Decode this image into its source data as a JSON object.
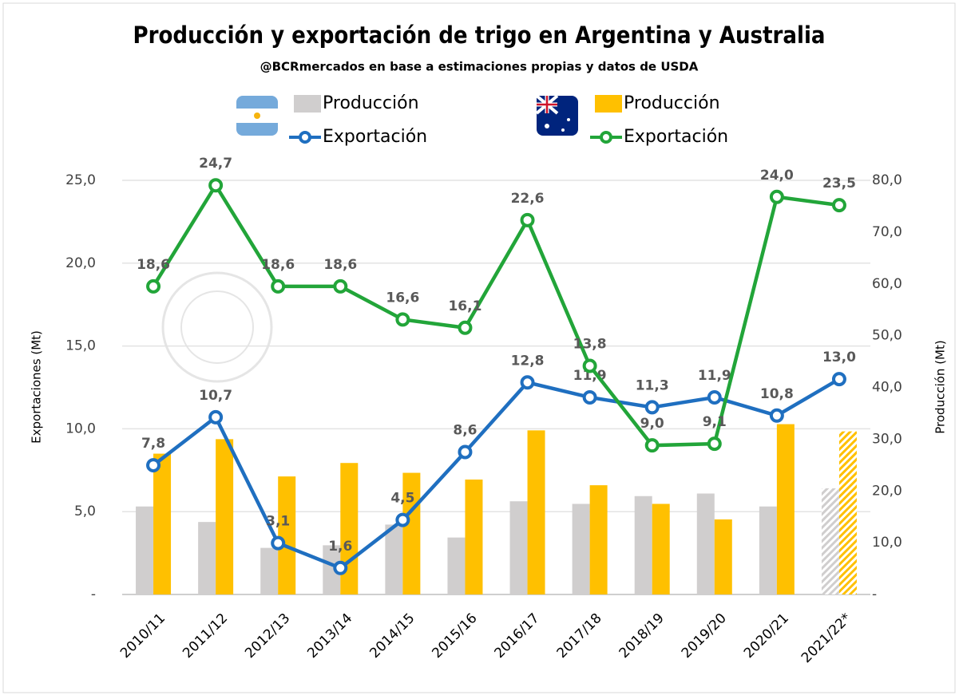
{
  "chart_data": {
    "type": "bar_line",
    "title": "Producción y exportación de trigo en Argentina y Australia",
    "subtitle": "@BCRmercados en base a estimaciones propias y datos de USDA",
    "y_label": "Exportaciones (Mt)",
    "y2_label": "Producción (Mt)",
    "categories": [
      "2010/11",
      "2011/12",
      "2012/13",
      "2013/14",
      "2014/15",
      "2015/16",
      "2016/17",
      "2017/18",
      "2018/19",
      "2019/20",
      "2020/21",
      "2021/22*"
    ],
    "ylim": [
      0,
      25
    ],
    "yticks": [
      {
        "value": 0,
        "label": "-"
      },
      {
        "value": 5,
        "label": "5,0"
      },
      {
        "value": 10,
        "label": "10,0"
      },
      {
        "value": 15,
        "label": "15,0"
      },
      {
        "value": 20,
        "label": "20,0"
      },
      {
        "value": 25,
        "label": "25,0"
      }
    ],
    "y2lim": [
      0,
      80
    ],
    "y2ticks": [
      {
        "value": 0,
        "label": "-"
      },
      {
        "value": 10,
        "label": "10,0"
      },
      {
        "value": 20,
        "label": "20,0"
      },
      {
        "value": 30,
        "label": "30,0"
      },
      {
        "value": 40,
        "label": "40,0"
      },
      {
        "value": 50,
        "label": "50,0"
      },
      {
        "value": 60,
        "label": "60,0"
      },
      {
        "value": 70,
        "label": "70,0"
      },
      {
        "value": 80,
        "label": "80,0"
      }
    ],
    "grid": true,
    "hatch_last": true,
    "series": [
      {
        "name": "Producción",
        "type": "bar",
        "axis": "y2",
        "color": "#d0cece",
        "values": [
          17.0,
          14.0,
          9.0,
          9.5,
          13.5,
          11.0,
          18.0,
          17.5,
          19.0,
          19.5,
          17.0,
          20.5
        ]
      },
      {
        "name": "Exportación",
        "type": "line",
        "color": "#1f6fc0",
        "values": [
          7.8,
          10.7,
          3.1,
          1.6,
          4.5,
          8.6,
          12.8,
          11.9,
          11.3,
          11.9,
          10.8,
          13.0
        ],
        "value_labels": [
          "7,8",
          "10,7",
          "3,1",
          "1,6",
          "4,5",
          "8,6",
          "12,8",
          "11,9",
          "11,3",
          "11,9",
          "10,8",
          "13,0"
        ]
      },
      {
        "name": "Producción",
        "type": "bar",
        "axis": "y2",
        "color": "#ffc000",
        "values": [
          27.2,
          30.0,
          22.8,
          25.4,
          23.5,
          22.2,
          31.7,
          21.1,
          17.5,
          14.5,
          32.9,
          31.5
        ]
      },
      {
        "name": "Exportación",
        "type": "line",
        "color": "#22a539",
        "values": [
          18.6,
          24.7,
          18.6,
          18.6,
          16.6,
          16.1,
          22.6,
          13.8,
          9.0,
          9.1,
          24.0,
          23.5
        ],
        "value_labels": [
          "18,6",
          "24,7",
          "18,6",
          "18,6",
          "16,6",
          "16,1",
          "22,6",
          "13,8",
          "9,0",
          "9,1",
          "24,0",
          "23,5"
        ]
      }
    ]
  }
}
